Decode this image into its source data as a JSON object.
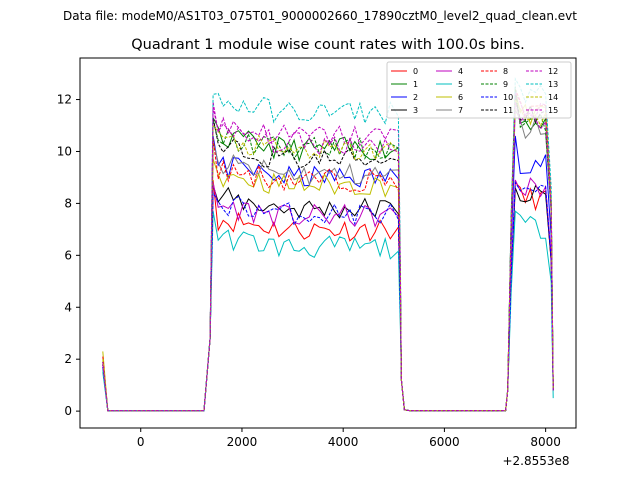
{
  "figure": {
    "suptitle": "Data file: modeM0/AS1T03_075T01_9000002660_17890cztM0_level2_quad_clean.evt"
  },
  "chart_data": {
    "type": "line",
    "title": "Quadrant 1 module wise count rates with 100.0s bins.",
    "xlabel": "",
    "ylabel": "",
    "x_offset_label": "+2.8553e8",
    "xlim": [
      -1200,
      8600
    ],
    "ylim": [
      -0.65,
      13.6
    ],
    "xticks": [
      0,
      2000,
      4000,
      6000,
      8000
    ],
    "yticks": [
      0,
      2,
      4,
      6,
      8,
      10,
      12
    ],
    "xtick_labels": [
      "0",
      "2000",
      "4000",
      "6000",
      "8000"
    ],
    "ytick_labels": [
      "0",
      "2",
      "4",
      "6",
      "8",
      "10",
      "12"
    ],
    "grid": false,
    "legend": {
      "position": "top-right",
      "columns": 4
    },
    "segments": [
      {
        "start": -750,
        "end": 1350
      },
      {
        "start": 1350,
        "end": 5150
      },
      {
        "start": 5150,
        "end": 7250
      },
      {
        "start": 7250,
        "end": 8150
      }
    ],
    "series": [
      {
        "name": "0",
        "color": "#ff0000",
        "dash": "solid",
        "start": 1.9,
        "mid_level": 7.0,
        "mid_peak": 8.9,
        "tail_level": 8.2,
        "tail_peak": 8.8,
        "end": 0.9
      },
      {
        "name": "1",
        "color": "#008000",
        "dash": "solid",
        "start": 1.8,
        "mid_level": 10.1,
        "mid_peak": 11.3,
        "tail_level": 11.2,
        "tail_peak": 12.1,
        "end": 0.8
      },
      {
        "name": "2",
        "color": "#0000ff",
        "dash": "solid",
        "start": 1.9,
        "mid_level": 9.0,
        "mid_peak": 10.6,
        "tail_level": 9.6,
        "tail_peak": 10.6,
        "end": 0.8
      },
      {
        "name": "3",
        "color": "#000000",
        "dash": "solid",
        "start": 1.8,
        "mid_level": 7.8,
        "mid_peak": 8.7,
        "tail_level": 8.3,
        "tail_peak": 8.6,
        "end": 0.8
      },
      {
        "name": "4",
        "color": "#bf00bf",
        "dash": "solid",
        "start": 1.8,
        "mid_level": 7.5,
        "mid_peak": 8.8,
        "tail_level": 8.6,
        "tail_peak": 8.9,
        "end": 0.8
      },
      {
        "name": "5",
        "color": "#00bfbf",
        "dash": "solid",
        "start": 1.5,
        "mid_level": 6.3,
        "mid_peak": 7.7,
        "tail_level": 7.1,
        "tail_peak": 7.7,
        "end": 0.5
      },
      {
        "name": "6",
        "color": "#bfbf00",
        "dash": "solid",
        "start": 2.3,
        "mid_level": 8.7,
        "mid_peak": 9.7,
        "tail_level": 11.4,
        "tail_peak": 12.4,
        "end": 0.9
      },
      {
        "name": "7",
        "color": "#808080",
        "dash": "solid",
        "start": 1.7,
        "mid_level": 9.1,
        "mid_peak": 10.4,
        "tail_level": 10.9,
        "tail_peak": 11.6,
        "end": 0.9
      },
      {
        "name": "8",
        "color": "#ff0000",
        "dash": "dashed",
        "start": 2.1,
        "mid_level": 8.9,
        "mid_peak": 10.5,
        "tail_level": 11.5,
        "tail_peak": 12.4,
        "end": 0.9
      },
      {
        "name": "9",
        "color": "#008000",
        "dash": "dashed",
        "start": 1.9,
        "mid_level": 10.1,
        "mid_peak": 11.2,
        "tail_level": 11.0,
        "tail_peak": 12.5,
        "end": 0.9
      },
      {
        "name": "10",
        "color": "#0000ff",
        "dash": "dashed",
        "start": 1.7,
        "mid_level": 7.6,
        "mid_peak": 8.4,
        "tail_level": 8.3,
        "tail_peak": 8.8,
        "end": 0.8
      },
      {
        "name": "11",
        "color": "#000000",
        "dash": "dashed",
        "start": 1.8,
        "mid_level": 9.7,
        "mid_peak": 11.3,
        "tail_level": 11.5,
        "tail_peak": 12.2,
        "end": 0.8
      },
      {
        "name": "12",
        "color": "#bf00bf",
        "dash": "dashed",
        "start": 1.9,
        "mid_level": 10.6,
        "mid_peak": 11.9,
        "tail_level": 11.7,
        "tail_peak": 12.3,
        "end": 0.8
      },
      {
        "name": "13",
        "color": "#00bfbf",
        "dash": "dashed",
        "start": 1.6,
        "mid_level": 11.5,
        "mid_peak": 12.2,
        "tail_level": 12.3,
        "tail_peak": 12.8,
        "end": 0.8
      },
      {
        "name": "14",
        "color": "#bfbf00",
        "dash": "dashed",
        "start": 2.0,
        "mid_level": 10.0,
        "mid_peak": 11.0,
        "tail_level": 11.4,
        "tail_peak": 12.0,
        "end": 0.8
      },
      {
        "name": "15",
        "color": "#bf00bf",
        "dash": "dashed",
        "start": 1.8,
        "mid_level": 10.3,
        "mid_peak": 11.7,
        "tail_level": 11.2,
        "tail_peak": 11.9,
        "end": 0.8
      }
    ]
  }
}
